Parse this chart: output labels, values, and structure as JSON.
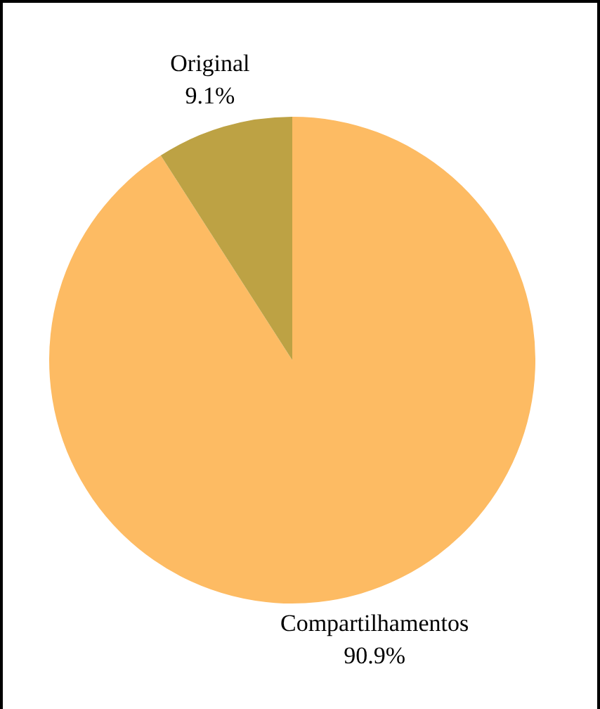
{
  "chart_data": {
    "type": "pie",
    "categories": [
      "Compartilhamentos",
      "Original"
    ],
    "values": [
      90.9,
      9.1
    ],
    "colors": [
      "#fdbb63",
      "#bda244"
    ],
    "value_labels": [
      "90.9%",
      "9.1%"
    ],
    "legend": false
  }
}
